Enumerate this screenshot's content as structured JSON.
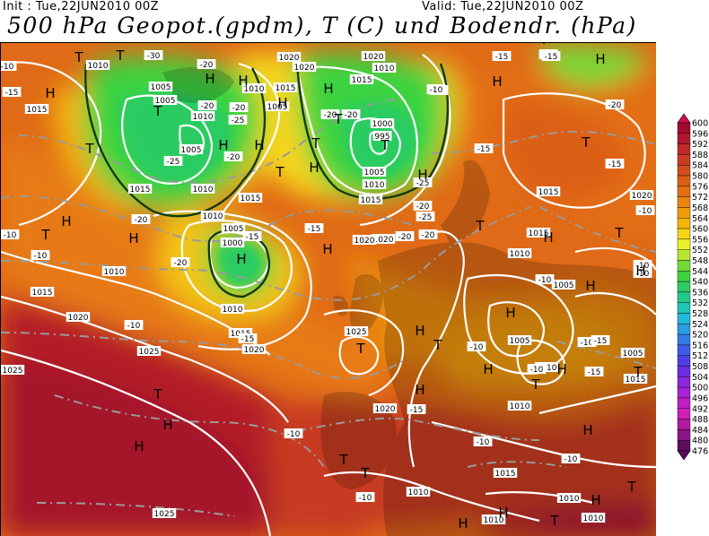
{
  "header": {
    "init": "Init : Tue,22JUN2010 00Z",
    "valid": "Valid: Tue,22JUN2010 00Z",
    "title": "500 hPa Geopot.(gpdm), T (C) und Bodendr. (hPa)"
  },
  "colorbar": {
    "levels": [
      "600",
      "596",
      "592",
      "588",
      "584",
      "580",
      "576",
      "572",
      "568",
      "564",
      "560",
      "556",
      "552",
      "548",
      "544",
      "540",
      "536",
      "532",
      "528",
      "524",
      "520",
      "516",
      "512",
      "508",
      "504",
      "500",
      "496",
      "492",
      "488",
      "484",
      "480",
      "476"
    ],
    "colors": [
      "#d0104c",
      "#a10b2d",
      "#b0182e",
      "#c02a2a",
      "#c83c24",
      "#d24d1c",
      "#dc5e17",
      "#e47014",
      "#ea8510",
      "#f09a0c",
      "#f4b50a",
      "#f6d51a",
      "#eaf02a",
      "#b8e52e",
      "#74da37",
      "#3dd33f",
      "#2ccc62",
      "#22c98c",
      "#1ec6b5",
      "#22b9d8",
      "#2b9be3",
      "#357be6",
      "#3e5ce6",
      "#4d40e2",
      "#6a2ee0",
      "#8a28dc",
      "#a824d4",
      "#c21fc5",
      "#cf1fb5",
      "#b01a9e",
      "#8c1585",
      "#5d0d60"
    ]
  },
  "map": {
    "legend_ref": "colorbar",
    "pressure_labels": [
      {
        "t": "1010"
      },
      {
        "t": "1005"
      },
      {
        "t": "1010"
      },
      {
        "t": "1015"
      },
      {
        "t": "1020"
      },
      {
        "t": "1005"
      },
      {
        "t": "1010"
      },
      {
        "t": "1015"
      },
      {
        "t": "1020"
      },
      {
        "t": "1015"
      },
      {
        "t": "1010"
      },
      {
        "t": "1005"
      },
      {
        "t": "1000"
      },
      {
        "t": "995"
      },
      {
        "t": "1005"
      },
      {
        "t": "1010"
      },
      {
        "t": "1015"
      },
      {
        "t": "1020"
      },
      {
        "t": "1015"
      },
      {
        "t": "1010"
      },
      {
        "t": "1005"
      },
      {
        "t": "1000"
      },
      {
        "t": "1010"
      },
      {
        "t": "1015"
      },
      {
        "t": "1020"
      },
      {
        "t": "1015"
      },
      {
        "t": "1010"
      },
      {
        "t": "1015"
      },
      {
        "t": "1020"
      },
      {
        "t": "1025"
      },
      {
        "t": "1025"
      },
      {
        "t": "1020"
      },
      {
        "t": "1025"
      },
      {
        "t": "1020"
      },
      {
        "t": "1015"
      },
      {
        "t": "1010"
      },
      {
        "t": "1005"
      },
      {
        "t": "1005"
      },
      {
        "t": "1010"
      },
      {
        "t": "1015"
      },
      {
        "t": "1010"
      },
      {
        "t": "1010"
      },
      {
        "t": "1010"
      },
      {
        "t": "1025"
      },
      {
        "t": "1020"
      },
      {
        "t": "1015"
      },
      {
        "t": "1010"
      },
      {
        "t": "1005"
      },
      {
        "t": "1010"
      },
      {
        "t": "1015"
      },
      {
        "t": "1020"
      },
      {
        "t": "1010"
      },
      {
        "t": "1005"
      }
    ],
    "temperature_labels": [
      {
        "t": "-30"
      },
      {
        "t": "-20"
      },
      {
        "t": "-25"
      },
      {
        "t": "-20"
      },
      {
        "t": "-20"
      },
      {
        "t": "-25"
      },
      {
        "t": "-20"
      },
      {
        "t": "-20"
      },
      {
        "t": "-20"
      },
      {
        "t": "-25"
      },
      {
        "t": "-20"
      },
      {
        "t": "-15"
      },
      {
        "t": "-25"
      },
      {
        "t": "-20"
      },
      {
        "t": "-15"
      },
      {
        "t": "-20"
      },
      {
        "t": "-20"
      },
      {
        "t": "-15"
      },
      {
        "t": "-15"
      },
      {
        "t": "-20"
      },
      {
        "t": "-10"
      },
      {
        "t": "-15"
      },
      {
        "t": "-10"
      },
      {
        "t": "-10"
      },
      {
        "t": "-10"
      },
      {
        "t": "-15"
      },
      {
        "t": "-10"
      },
      {
        "t": "-15"
      },
      {
        "t": "-10"
      },
      {
        "t": "-10"
      },
      {
        "t": "-10"
      },
      {
        "t": "-15"
      },
      {
        "t": "-10"
      },
      {
        "t": "-10"
      },
      {
        "t": "-10"
      },
      {
        "t": "-10"
      },
      {
        "t": "-15"
      },
      {
        "t": "-10"
      },
      {
        "t": "-15"
      },
      {
        "t": "-20"
      },
      {
        "t": "-20"
      },
      {
        "t": "-15"
      },
      {
        "t": "-10"
      },
      {
        "t": "-10"
      },
      {
        "t": "-10"
      },
      {
        "t": "-10"
      }
    ],
    "pressure_centers": [
      {
        "t": "T"
      },
      {
        "t": "T"
      },
      {
        "t": "T"
      },
      {
        "t": "H"
      },
      {
        "t": "H"
      },
      {
        "t": "H"
      },
      {
        "t": "T"
      },
      {
        "t": "H"
      },
      {
        "t": "T"
      },
      {
        "t": "H"
      },
      {
        "t": "H"
      },
      {
        "t": "T"
      },
      {
        "t": "T"
      },
      {
        "t": "H"
      },
      {
        "t": "H"
      },
      {
        "t": "H"
      },
      {
        "t": "T"
      },
      {
        "t": "H"
      },
      {
        "t": "T"
      },
      {
        "t": "H"
      },
      {
        "t": "T"
      },
      {
        "t": "T"
      },
      {
        "t": "H"
      },
      {
        "t": "H"
      },
      {
        "t": "T"
      },
      {
        "t": "H"
      },
      {
        "t": "T"
      },
      {
        "t": "H"
      },
      {
        "t": "H"
      },
      {
        "t": "H"
      },
      {
        "t": "H"
      },
      {
        "t": "T"
      },
      {
        "t": "H"
      },
      {
        "t": "T"
      },
      {
        "t": "H"
      },
      {
        "t": "T"
      },
      {
        "t": "H"
      },
      {
        "t": "T"
      },
      {
        "t": "H"
      },
      {
        "t": "T"
      },
      {
        "t": "H"
      },
      {
        "t": "H"
      },
      {
        "t": "T"
      },
      {
        "t": "H"
      },
      {
        "t": "T"
      },
      {
        "t": "H"
      },
      {
        "t": "T"
      },
      {
        "t": "H"
      },
      {
        "t": "T"
      },
      {
        "t": "H"
      },
      {
        "t": "H"
      }
    ]
  }
}
